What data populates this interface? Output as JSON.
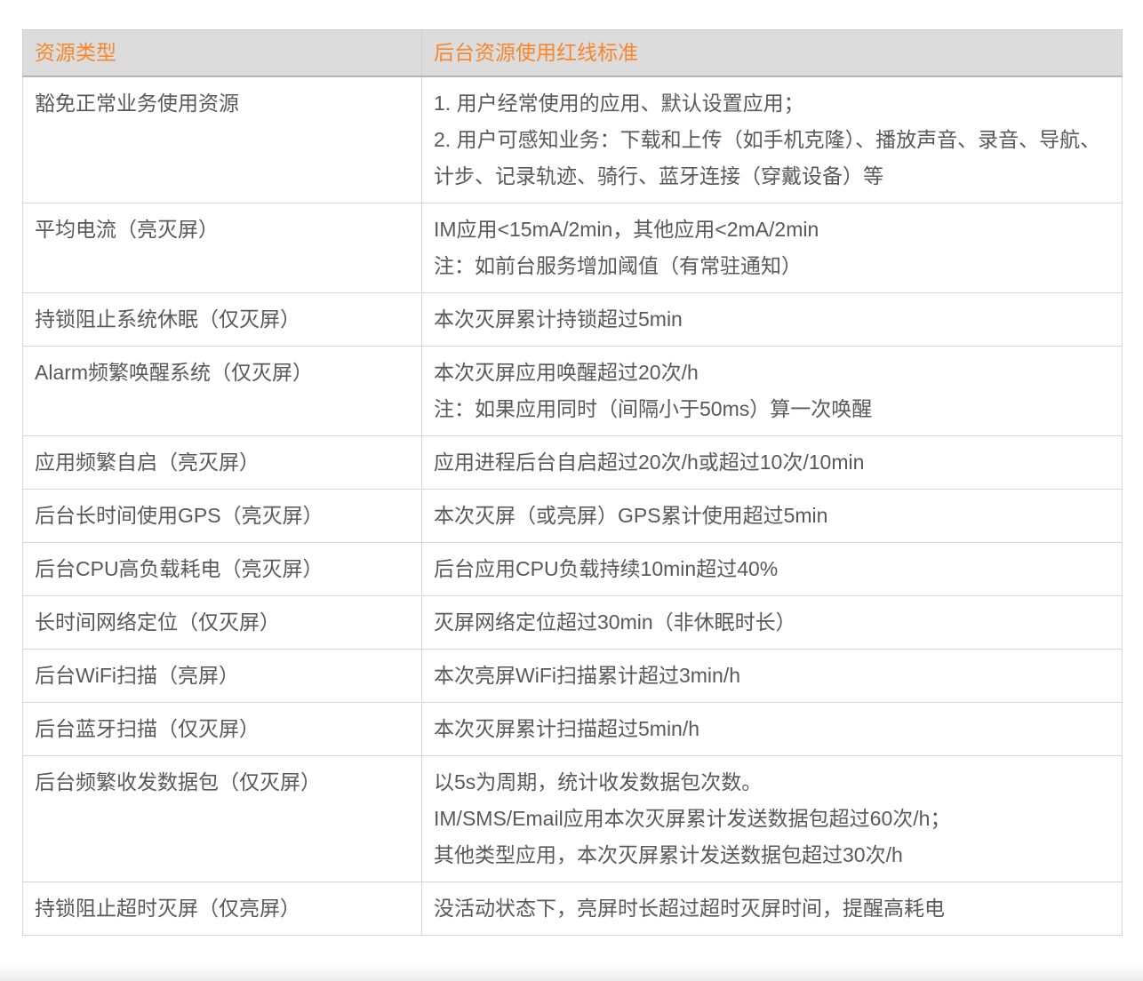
{
  "colors": {
    "header_text": "#f7872d",
    "header_bg": "#dcdcdc",
    "header_border": "#b5b5b5",
    "body_text": "#595959",
    "border": "#d6d6d6"
  },
  "table": {
    "columns": [
      {
        "label": "资源类型"
      },
      {
        "label": "后台资源使用红线标准"
      }
    ],
    "rows": [
      {
        "type": "豁免正常业务使用资源",
        "standard": "1. 用户经常使用的应用、默认设置应用；\n2. 用户可感知业务：下载和上传（如手机克隆）、播放声音、录音、导航、计步、记录轨迹、骑行、蓝牙连接（穿戴设备）等"
      },
      {
        "type": "平均电流（亮灭屏）",
        "standard": "IM应用<15mA/2min，其他应用<2mA/2min\n注：如前台服务增加阈值（有常驻通知）"
      },
      {
        "type": "持锁阻止系统休眠（仅灭屏）",
        "standard": "本次灭屏累计持锁超过5min"
      },
      {
        "type": "Alarm频繁唤醒系统（仅灭屏）",
        "standard": "本次灭屏应用唤醒超过20次/h\n注：如果应用同时（间隔小于50ms）算一次唤醒"
      },
      {
        "type": "应用频繁自启（亮灭屏）",
        "standard": "应用进程后台自启超过20次/h或超过10次/10min"
      },
      {
        "type": "后台长时间使用GPS（亮灭屏）",
        "standard": "本次灭屏（或亮屏）GPS累计使用超过5min"
      },
      {
        "type": "后台CPU高负载耗电（亮灭屏）",
        "standard": "后台应用CPU负载持续10min超过40%"
      },
      {
        "type": "长时间网络定位（仅灭屏）",
        "standard": "灭屏网络定位超过30min（非休眠时长）"
      },
      {
        "type": "后台WiFi扫描（亮屏）",
        "standard": "本次亮屏WiFi扫描累计超过3min/h"
      },
      {
        "type": "后台蓝牙扫描（仅灭屏）",
        "standard": "本次灭屏累计扫描超过5min/h"
      },
      {
        "type": "后台频繁收发数据包（仅灭屏）",
        "standard": "以5s为周期，统计收发数据包次数。\nIM/SMS/Email应用本次灭屏累计发送数据包超过60次/h；\n其他类型应用，本次灭屏累计发送数据包超过30次/h"
      },
      {
        "type": "持锁阻止超时灭屏（仅亮屏）",
        "standard": "没活动状态下，亮屏时长超过超时灭屏时间，提醒高耗电"
      }
    ]
  }
}
